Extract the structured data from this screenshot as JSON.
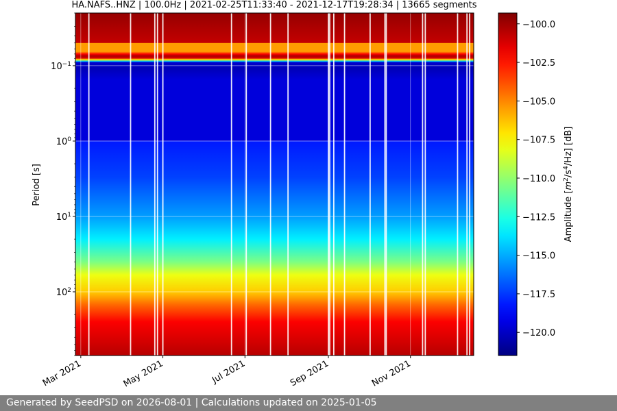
{
  "chart_data": {
    "type": "heatmap",
    "title": "HA.NAFS..HNZ | 100.0Hz | 2021-02-25T11:33:40 - 2021-12-17T19:28:34 | 13665 segments",
    "ylabel": "Period [s]",
    "y_scale": "log",
    "y_inverted": true,
    "ylim": [
      0.02,
      700
    ],
    "y_ticks": [
      {
        "value": 0.1,
        "base": "10",
        "exp": "−1"
      },
      {
        "value": 1,
        "base": "10",
        "exp": "0"
      },
      {
        "value": 10,
        "base": "10",
        "exp": "1"
      },
      {
        "value": 100,
        "base": "10",
        "exp": "2"
      }
    ],
    "x_start": "2021-02-25",
    "x_end": "2021-12-17",
    "x_ticks": [
      {
        "date": "2021-03-01",
        "label": "Mar 2021"
      },
      {
        "date": "2021-05-01",
        "label": "May 2021"
      },
      {
        "date": "2021-07-01",
        "label": "Jul 2021"
      },
      {
        "date": "2021-09-01",
        "label": "Sep 2021"
      },
      {
        "date": "2021-11-01",
        "label": "Nov 2021"
      }
    ],
    "grid": true,
    "colormap": "jet",
    "colorbar": {
      "label_pre": "Amplitude [",
      "label_m": "m",
      "label_exp2": "2",
      "label_mid": "/s",
      "label_exp4": "4",
      "label_post": "/Hz] [dB]",
      "range": [
        -121.5,
        -99.3
      ],
      "ticks": [
        -100.0,
        -102.5,
        -105.0,
        -107.5,
        -110.0,
        -112.5,
        -115.0,
        -117.5,
        -120.0
      ]
    },
    "period_profile": [
      {
        "period": 0.02,
        "db": -99.8
      },
      {
        "period": 0.05,
        "db": -100.8
      },
      {
        "period": 0.07,
        "db": -102.8
      },
      {
        "period": 0.1,
        "db": -104.8
      },
      {
        "period": 0.13,
        "db": -109.0
      },
      {
        "period": 0.2,
        "db": -116.0
      },
      {
        "period": 0.5,
        "db": -118.6
      },
      {
        "period": 1,
        "db": -118.2
      },
      {
        "period": 3,
        "db": -117.3
      },
      {
        "period": 10,
        "db": -115.3
      },
      {
        "period": 20,
        "db": -113.5
      },
      {
        "period": 40,
        "db": -110.5
      },
      {
        "period": 60,
        "db": -108.0
      },
      {
        "period": 100,
        "db": -106.5
      },
      {
        "period": 150,
        "db": -104.3
      },
      {
        "period": 250,
        "db": -102.0
      },
      {
        "period": 700,
        "db": -100.5
      }
    ],
    "short_period_band": [
      {
        "period": 0.05,
        "db": -105.5
      },
      {
        "period": 0.065,
        "db": -102.0
      },
      {
        "period": 0.08,
        "db": -100.3
      },
      {
        "period": 0.1,
        "db": -101.3
      },
      {
        "period": 0.12,
        "db": -107.5
      },
      {
        "period": 0.14,
        "db": -114.5
      },
      {
        "period": 0.16,
        "db": -119.8
      },
      {
        "period": 0.3,
        "db": -120.3
      },
      {
        "period": 1,
        "db": -119.5
      }
    ],
    "data_gaps": [
      "2021-03-07",
      "2021-04-07",
      "2021-04-25",
      "2021-04-27",
      "2021-05-01",
      "2021-06-21",
      "2021-07-02",
      "2021-07-20",
      "2021-08-02",
      "2021-09-01",
      "2021-09-02",
      "2021-09-05",
      "2021-09-13",
      "2021-10-02",
      "2021-10-13",
      "2021-10-14",
      "2021-11-10",
      "2021-11-12",
      "2021-12-06",
      "2021-12-13",
      "2021-12-15"
    ]
  },
  "footer": {
    "text": "Generated by SeedPSD on 2026-08-01 | Calculations updated on 2025-01-05",
    "color": "#808080"
  }
}
